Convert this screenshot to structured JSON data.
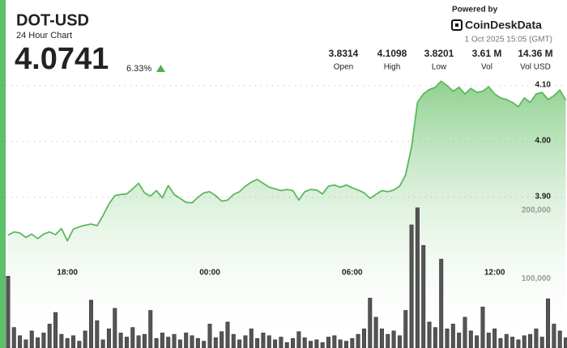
{
  "header": {
    "title": "DOT-USD",
    "subtitle": "24 Hour Chart",
    "price": "4.0741",
    "change": "6.33%",
    "powered_by": "Powered by",
    "brand": "CoinDeskData",
    "timestamp": "1 Oct 2025 15:05 (GMT)",
    "stats": [
      {
        "value": "3.8314",
        "label": "Open"
      },
      {
        "value": "4.1098",
        "label": "High"
      },
      {
        "value": "3.8201",
        "label": "Low"
      },
      {
        "value": "3.61 M",
        "label": "Vol"
      },
      {
        "value": "14.36 M",
        "label": "Vol USD"
      }
    ]
  },
  "chart_data": {
    "type": "line",
    "grid": true,
    "x": [
      -8.5,
      -8.25,
      -8,
      -7.75,
      -7.5,
      -7.25,
      -7,
      -6.75,
      -6.5,
      -6.25,
      -6,
      -5.75,
      -5.5,
      -5.25,
      -5,
      -4.75,
      -4.5,
      -4.25,
      -4,
      -3.75,
      -3.5,
      -3.25,
      -3,
      -2.75,
      -2.5,
      -2.25,
      -2,
      -1.75,
      -1.5,
      -1.25,
      -1,
      -0.75,
      -0.5,
      -0.25,
      0,
      0.25,
      0.5,
      0.75,
      1,
      1.25,
      1.5,
      1.75,
      2,
      2.25,
      2.5,
      2.75,
      3,
      3.25,
      3.5,
      3.75,
      4,
      4.25,
      4.5,
      4.75,
      5,
      5.25,
      5.5,
      5.75,
      6,
      6.25,
      6.5,
      6.75,
      7,
      7.25,
      7.5,
      7.75,
      8,
      8.25,
      8.5,
      8.75,
      9,
      9.25,
      9.5,
      9.75,
      10,
      10.25,
      10.5,
      10.75,
      11,
      11.25,
      11.5,
      11.75,
      12,
      12.25,
      12.5,
      12.75,
      13,
      13.25,
      13.5,
      13.75,
      14,
      14.25,
      14.5,
      14.75,
      15
    ],
    "xlim": [
      -8.6,
      15.05
    ],
    "xticks": [
      {
        "value": -6,
        "label": "18:00"
      },
      {
        "value": 0,
        "label": "00:00"
      },
      {
        "value": 6,
        "label": "06:00"
      },
      {
        "value": 12,
        "label": "12:00"
      }
    ],
    "ylim": [
      3.63,
      4.12
    ],
    "yticks": [
      {
        "value": 3.9,
        "label": "3.90"
      },
      {
        "value": 4,
        "label": "4.00"
      },
      {
        "value": 4.1,
        "label": "4.10"
      }
    ],
    "y2lim": [
      0,
      400000
    ],
    "y2ticks": [
      {
        "value": 100000,
        "label": "100,000"
      },
      {
        "value": 200000,
        "label": "200,000"
      }
    ],
    "series": [
      {
        "color": "#5cb85c",
        "values": [
          3.832,
          3.838,
          3.836,
          3.828,
          3.834,
          3.826,
          3.834,
          3.838,
          3.833,
          3.844,
          3.822,
          3.843,
          3.847,
          3.85,
          3.852,
          3.849,
          3.867,
          3.888,
          3.903,
          3.905,
          3.906,
          3.915,
          3.925,
          3.908,
          3.902,
          3.912,
          3.899,
          3.921,
          3.905,
          3.898,
          3.891,
          3.89,
          3.9,
          3.908,
          3.91,
          3.903,
          3.893,
          3.895,
          3.905,
          3.91,
          3.92,
          3.927,
          3.932,
          3.925,
          3.918,
          3.915,
          3.912,
          3.914,
          3.912,
          3.895,
          3.91,
          3.914,
          3.913,
          3.906,
          3.92,
          3.922,
          3.918,
          3.922,
          3.917,
          3.913,
          3.908,
          3.898,
          3.905,
          3.912,
          3.91,
          3.913,
          3.92,
          3.94,
          3.99,
          4.07,
          4.085,
          4.093,
          4.097,
          4.108,
          4.1,
          4.09,
          4.097,
          4.085,
          4.095,
          4.088,
          4.09,
          4.098,
          4.085,
          4.078,
          4.075,
          4.07,
          4.062,
          4.078,
          4.07,
          4.085,
          4.088,
          4.075,
          4.082,
          4.092,
          4.074
        ]
      },
      {
        "color": "#555555",
        "axis": "y2",
        "values": [
          105000,
          30000,
          18000,
          12000,
          25000,
          15000,
          22000,
          35000,
          52000,
          20000,
          14000,
          18000,
          10000,
          25000,
          70000,
          40000,
          12000,
          28000,
          58000,
          22000,
          16000,
          30000,
          18000,
          20000,
          55000,
          14000,
          22000,
          16000,
          20000,
          12000,
          22000,
          18000,
          14000,
          10000,
          35000,
          15000,
          24000,
          38000,
          20000,
          12000,
          18000,
          28000,
          14000,
          22000,
          18000,
          12000,
          16000,
          8000,
          14000,
          24000,
          15000,
          10000,
          12000,
          8000,
          16000,
          18000,
          12000,
          10000,
          14000,
          20000,
          28000,
          73000,
          45000,
          28000,
          20000,
          25000,
          18000,
          55000,
          180000,
          205000,
          150000,
          38000,
          30000,
          130000,
          28000,
          35000,
          22000,
          45000,
          25000,
          18000,
          60000,
          22000,
          28000,
          14000,
          20000,
          16000,
          12000,
          18000,
          20000,
          28000,
          16000,
          72000,
          35000,
          25000,
          15000
        ]
      }
    ]
  }
}
